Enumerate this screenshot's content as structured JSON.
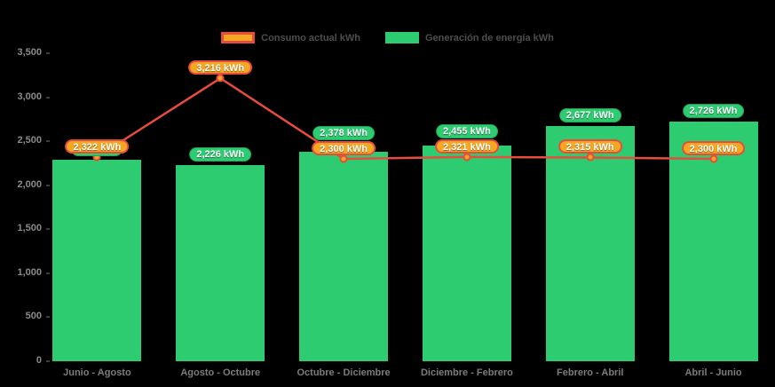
{
  "legend": {
    "items": [
      {
        "label": "Consumo actual kWh",
        "swatch_fill": "#F5A623",
        "swatch_border": "#E74C3C"
      },
      {
        "label": "Generación de energía kWh",
        "swatch_fill": "#2ECC71"
      }
    ]
  },
  "chart_data": {
    "type": "bar-line-combo",
    "background": "#000000",
    "categories": [
      "Junio - Agosto",
      "Agosto - Octubre",
      "Octubre - Diciembre",
      "Diciembre - Febrero",
      "Febrero - Abril",
      "Abril - Junio"
    ],
    "series": [
      {
        "name": "Generación de energía kWh",
        "type": "bar",
        "color": "#2ECC71",
        "values": [
          2290,
          2226,
          2378,
          2455,
          2677,
          2726
        ],
        "point_labels": [
          "",
          "2,226 kWh",
          "2,378 kWh",
          "2,455 kWh",
          "2,677 kWh",
          "2,726 kWh"
        ]
      },
      {
        "name": "Consumo actual kWh",
        "type": "line",
        "color": "#E74C3C",
        "marker_color": "#F5A623",
        "values": [
          2322,
          3216,
          2300,
          2321,
          2315,
          2300
        ],
        "point_labels": [
          "2,322 kWh",
          "3,216 kWh",
          "2,300 kWh",
          "2,321 kWh",
          "2,315 kWh",
          "2,300 kWh"
        ]
      }
    ],
    "ylim": [
      0,
      3500
    ],
    "yticks": [
      {
        "value": 0,
        "label": "0"
      },
      {
        "value": 500,
        "label": "500"
      },
      {
        "value": 1000,
        "label": "1,000"
      },
      {
        "value": 1500,
        "label": "1,500"
      },
      {
        "value": 2000,
        "label": "2,000"
      },
      {
        "value": 2500,
        "label": "2,500"
      },
      {
        "value": 3000,
        "label": "3,000"
      },
      {
        "value": 3500,
        "label": "3,500"
      }
    ],
    "grid": false,
    "legend_position": "top-center"
  }
}
